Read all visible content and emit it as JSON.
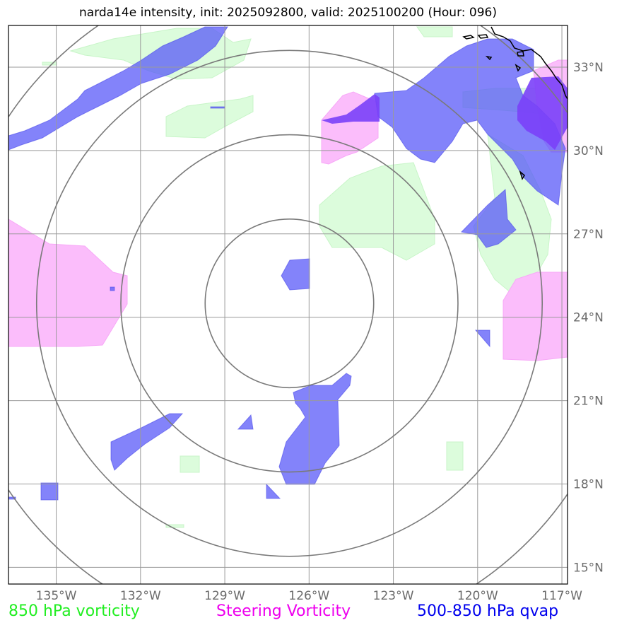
{
  "title": "narda14e intensity, init: 2025092800, valid: 2025100200 (Hour: 096)",
  "chart_data": {
    "type": "map",
    "storm": "narda14e",
    "init": "2025092800",
    "valid": "2025100200",
    "forecast_hour": "096",
    "lon_range": [
      -136.7,
      -116.8
    ],
    "lat_range": [
      14.4,
      34.5
    ],
    "lon_ticks": [
      {
        "value": -135,
        "label": "135°W"
      },
      {
        "value": -132,
        "label": "132°W"
      },
      {
        "value": -129,
        "label": "129°W"
      },
      {
        "value": -126,
        "label": "126°W"
      },
      {
        "value": -123,
        "label": "123°W"
      },
      {
        "value": -120,
        "label": "120°W"
      },
      {
        "value": -117,
        "label": "117°W"
      }
    ],
    "lat_ticks": [
      {
        "value": 15,
        "label": "15°N"
      },
      {
        "value": 18,
        "label": "18°N"
      },
      {
        "value": 21,
        "label": "21°N"
      },
      {
        "value": 24,
        "label": "24°N"
      },
      {
        "value": 27,
        "label": "27°N"
      },
      {
        "value": 30,
        "label": "30°N"
      },
      {
        "value": 33,
        "label": "33°N"
      }
    ],
    "storm_center": {
      "lon": -126.7,
      "lat": 24.5
    },
    "range_rings_deg": [
      3,
      6,
      9,
      12
    ],
    "legend": [
      {
        "label": "850 hPa vorticity",
        "color": "#22ee22"
      },
      {
        "label": "Steering Vorticity",
        "color": "#ee00ee"
      },
      {
        "label": "500-850 hPa qvap",
        "color": "#0000ee"
      }
    ]
  }
}
